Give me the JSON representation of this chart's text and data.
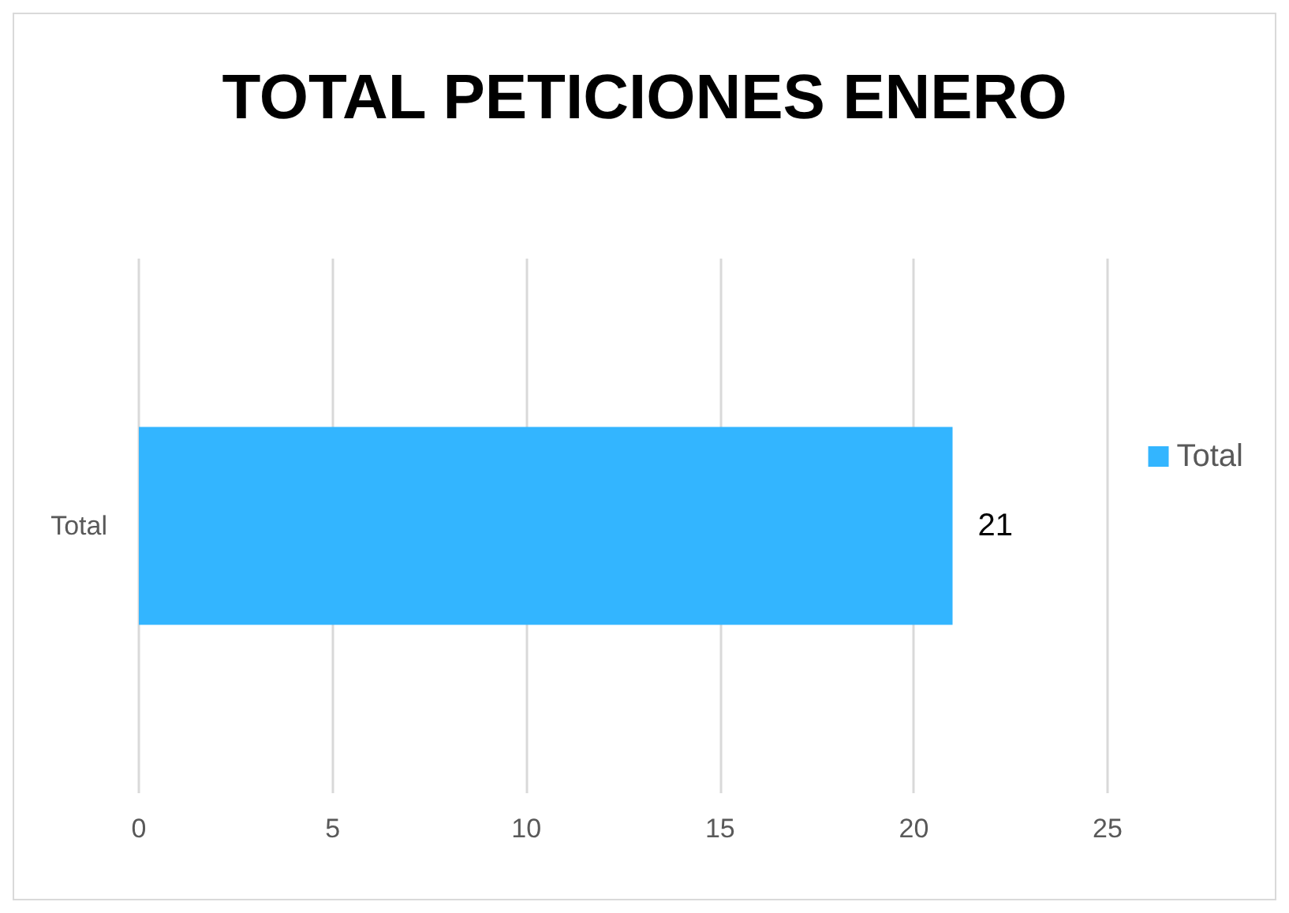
{
  "chart_data": {
    "type": "bar",
    "orientation": "horizontal",
    "title": "TOTAL PETICIONES ENERO",
    "categories": [
      "Total"
    ],
    "series": [
      {
        "name": "Total",
        "color": "#33b5ff",
        "values": [
          21
        ]
      }
    ],
    "xlim": [
      0,
      25
    ],
    "xticks": [
      0,
      5,
      10,
      15,
      20,
      25
    ],
    "grid": "x",
    "legend": "right",
    "data_labels": true
  }
}
